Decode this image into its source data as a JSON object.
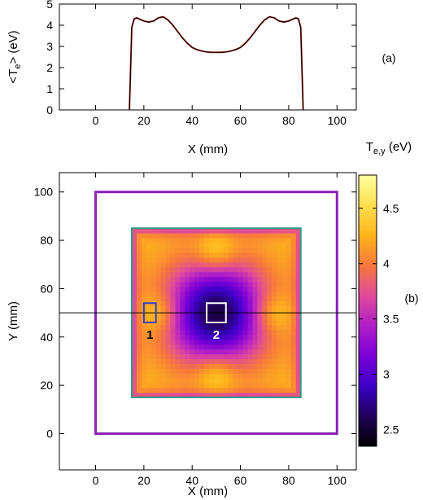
{
  "chart_data": [
    {
      "type": "line",
      "panel_label": "(a)",
      "xlabel": "X (mm)",
      "ylabel": "<T",
      "ylabel_sub": "e",
      "ylabel_end": "> (eV)",
      "xlim": [
        -15,
        108
      ],
      "ylim": [
        0,
        5
      ],
      "xticks": [
        0,
        20,
        40,
        60,
        80,
        100
      ],
      "yticks": [
        0,
        1,
        2,
        3,
        4,
        5
      ],
      "series": [
        {
          "line_color": "#000000",
          "overlay_color": "#d03020",
          "x": [
            14,
            15,
            16,
            17,
            18,
            20,
            22,
            24,
            26,
            28,
            30,
            32,
            34,
            36,
            38,
            40,
            42,
            44,
            46,
            48,
            50,
            52,
            54,
            56,
            58,
            60,
            62,
            64,
            66,
            68,
            70,
            72,
            74,
            76,
            78,
            80,
            82,
            83,
            84,
            85,
            86
          ],
          "y": [
            0,
            3.9,
            4.3,
            4.35,
            4.3,
            4.2,
            4.15,
            4.2,
            4.35,
            4.4,
            4.25,
            4.0,
            3.7,
            3.4,
            3.15,
            2.95,
            2.85,
            2.78,
            2.74,
            2.72,
            2.72,
            2.72,
            2.74,
            2.78,
            2.85,
            2.95,
            3.15,
            3.4,
            3.7,
            4.0,
            4.25,
            4.4,
            4.35,
            4.2,
            4.15,
            4.2,
            4.3,
            4.35,
            4.3,
            3.9,
            0
          ]
        }
      ]
    },
    {
      "type": "heatmap",
      "panel_label": "(b)",
      "xlabel": "X (mm)",
      "ylabel": "Y (mm)",
      "xlim": [
        -15,
        108
      ],
      "ylim": [
        -15,
        108
      ],
      "xticks": [
        0,
        20,
        40,
        60,
        80,
        100
      ],
      "yticks": [
        0,
        20,
        40,
        60,
        80,
        100
      ],
      "colorbar": {
        "label": "T",
        "label_sub": "e,y",
        "label_end": " (eV)",
        "range": [
          2.35,
          4.8
        ],
        "ticks": [
          2.5,
          3,
          3.5,
          4,
          4.5
        ],
        "colormap": [
          "#000000",
          "#22005a",
          "#3c00c8",
          "#7a00d8",
          "#b01ec8",
          "#e04a9a",
          "#f6783c",
          "#ffb41a",
          "#ffe050",
          "#ffff9e"
        ]
      },
      "outer_box": {
        "x": [
          0,
          100
        ],
        "y": [
          0,
          100
        ],
        "color": "#8a22b8"
      },
      "inner_box": {
        "x": [
          15,
          85
        ],
        "y": [
          15,
          85
        ],
        "color": "#2a9a88"
      },
      "h_line_y": 50,
      "field": {
        "base": 4.3,
        "center_dip": {
          "x": 50,
          "y": 50,
          "depth": 1.75,
          "radius": 15
        },
        "hot_spots": [
          {
            "x": 27,
            "y": 50,
            "amp": 0.4
          },
          {
            "x": 73,
            "y": 50,
            "amp": 0.4
          },
          {
            "x": 50,
            "y": 75,
            "amp": 0.4
          },
          {
            "x": 50,
            "y": 25,
            "amp": 0.4
          }
        ],
        "edge_drop": 0.8
      },
      "markers": [
        {
          "label": "1",
          "x": [
            20,
            25
          ],
          "y": [
            46,
            54
          ],
          "color": "#3040d0",
          "label_color": "#000000"
        },
        {
          "label": "2",
          "x": [
            46,
            54
          ],
          "y": [
            46,
            54
          ],
          "color": "#ffffff",
          "label_color": "#ffffff"
        }
      ]
    }
  ]
}
